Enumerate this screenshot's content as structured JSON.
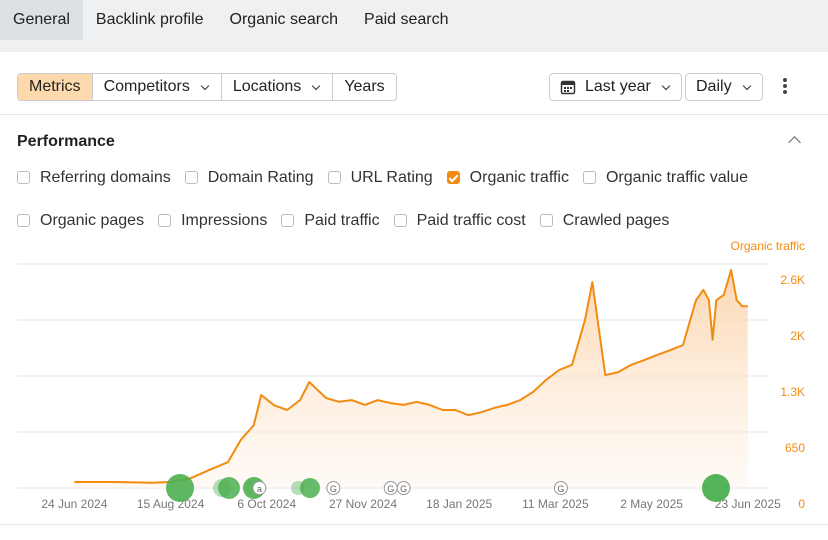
{
  "tabs": [
    "General",
    "Backlink profile",
    "Organic search",
    "Paid search"
  ],
  "toolbar": {
    "views": [
      "Metrics",
      "Competitors",
      "Locations",
      "Years"
    ],
    "period": "Last year",
    "granularity": "Daily"
  },
  "performance": {
    "title": "Performance",
    "metrics": [
      {
        "label": "Referring domains",
        "checked": false
      },
      {
        "label": "Domain Rating",
        "checked": false
      },
      {
        "label": "URL Rating",
        "checked": false
      },
      {
        "label": "Organic traffic",
        "checked": true
      },
      {
        "label": "Organic traffic value",
        "checked": false
      },
      {
        "label": "Organic pages",
        "checked": false
      },
      {
        "label": "Impressions",
        "checked": false
      },
      {
        "label": "Paid traffic",
        "checked": false
      },
      {
        "label": "Paid traffic cost",
        "checked": false
      },
      {
        "label": "Crawled pages",
        "checked": false
      }
    ]
  },
  "chart_data": {
    "type": "area",
    "x": [
      "2024-06-24",
      "2024-07-15",
      "2024-08-05",
      "2024-08-15",
      "2024-08-26",
      "2024-09-05",
      "2024-09-15",
      "2024-09-22",
      "2024-09-29",
      "2024-10-03",
      "2024-10-10",
      "2024-10-17",
      "2024-10-24",
      "2024-10-29",
      "2024-11-07",
      "2024-11-14",
      "2024-11-21",
      "2024-11-28",
      "2024-12-05",
      "2024-12-12",
      "2024-12-19",
      "2024-12-26",
      "2025-01-02",
      "2025-01-09",
      "2025-01-16",
      "2025-01-23",
      "2025-01-30",
      "2025-02-06",
      "2025-02-13",
      "2025-02-20",
      "2025-02-27",
      "2025-03-06",
      "2025-03-13",
      "2025-03-20",
      "2025-03-27",
      "2025-03-31",
      "2025-04-03",
      "2025-04-07",
      "2025-04-14",
      "2025-04-21",
      "2025-04-28",
      "2025-05-05",
      "2025-05-12",
      "2025-05-19",
      "2025-05-26",
      "2025-05-30",
      "2025-06-02",
      "2025-06-04",
      "2025-06-06",
      "2025-06-10",
      "2025-06-14",
      "2025-06-17",
      "2025-06-20",
      "2025-06-23"
    ],
    "series": [
      {
        "name": "Organic traffic",
        "color": "#f38b10",
        "values": [
          70,
          70,
          60,
          70,
          115,
          210,
          300,
          560,
          730,
          1080,
          960,
          905,
          1020,
          1230,
          1045,
          1000,
          1020,
          965,
          1020,
          985,
          965,
          1000,
          965,
          905,
          905,
          845,
          880,
          930,
          965,
          1020,
          1115,
          1255,
          1370,
          1430,
          1950,
          2390,
          1925,
          1310,
          1345,
          1430,
          1485,
          1545,
          1600,
          1660,
          2180,
          2300,
          2180,
          1720,
          2180,
          2240,
          2530,
          2180,
          2110,
          2110
        ]
      }
    ],
    "xlim": [
      "2024-05-24",
      "2025-07-05"
    ],
    "xticks": [
      {
        "value": "2024-06-24",
        "label": "24 Jun 2024"
      },
      {
        "value": "2024-08-15",
        "label": "15 Aug 2024"
      },
      {
        "value": "2024-10-06",
        "label": "6 Oct 2024"
      },
      {
        "value": "2024-11-27",
        "label": "27 Nov 2024"
      },
      {
        "value": "2025-01-18",
        "label": "18 Jan 2025"
      },
      {
        "value": "2025-03-11",
        "label": "11 Mar 2025"
      },
      {
        "value": "2025-05-02",
        "label": "2 May 2025"
      },
      {
        "value": "2025-06-23",
        "label": "23 Jun 2025"
      }
    ],
    "ylim": [
      0,
      2600
    ],
    "yticks": [
      0,
      650,
      {
        "value": 1300,
        "label": "1.3K"
      },
      {
        "value": 1950,
        "label": "2K"
      },
      {
        "value": 2600,
        "label": "2.6K"
      }
    ],
    "grid": true,
    "events": [
      {
        "date": "2024-10-02",
        "label": "a"
      },
      {
        "date": "2024-11-11",
        "label": "G"
      },
      {
        "date": "2024-12-12",
        "label": "G"
      },
      {
        "date": "2024-12-19",
        "label": "G"
      },
      {
        "date": "2025-03-14",
        "label": "G"
      }
    ]
  }
}
